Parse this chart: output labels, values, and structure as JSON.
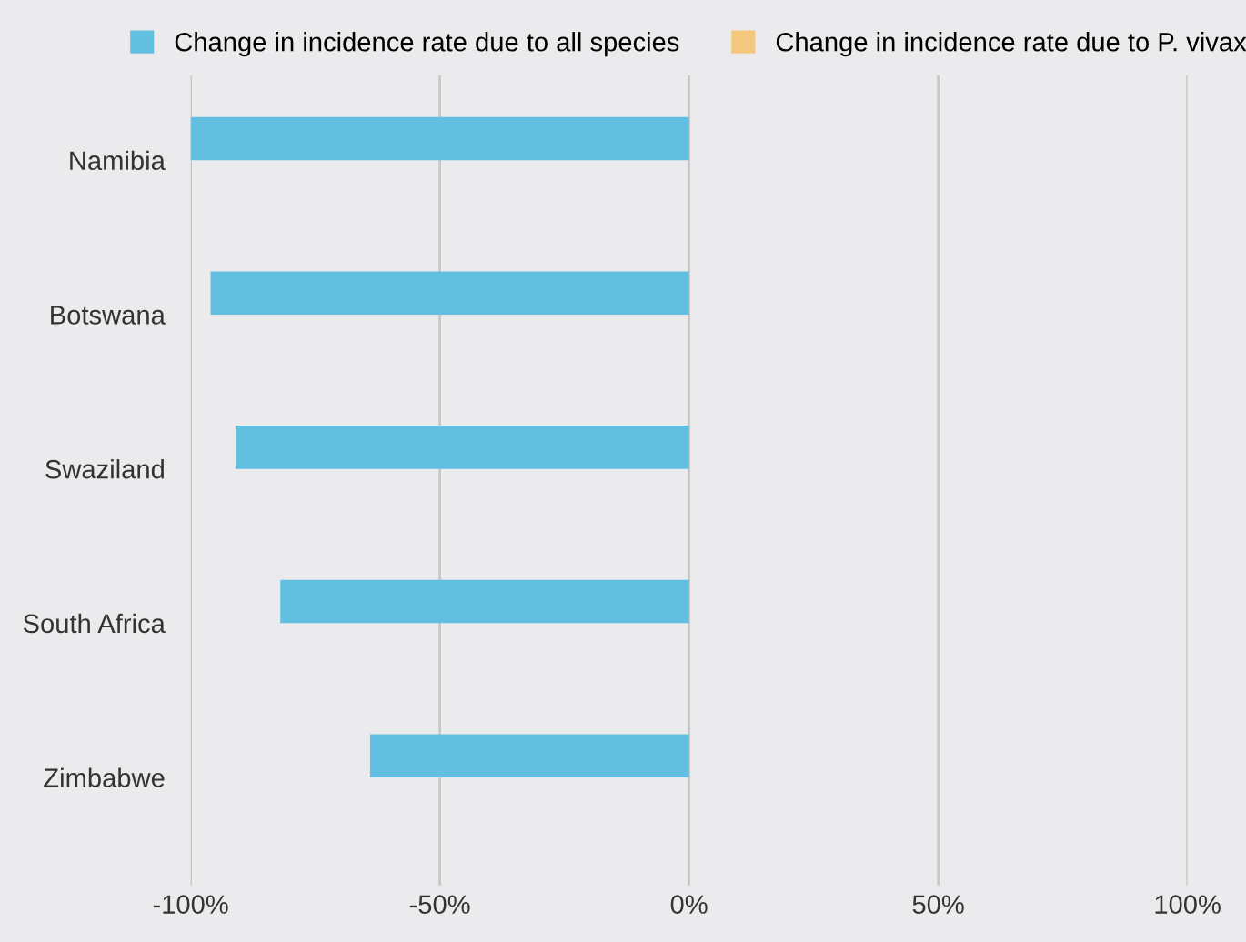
{
  "chart_data": {
    "type": "bar",
    "orientation": "horizontal",
    "categories": [
      "Namibia",
      "Botswana",
      "Swaziland",
      "South Africa",
      "Zimbabwe"
    ],
    "series": [
      {
        "name": "Change in incidence rate due to all species",
        "color": "#62bfe0",
        "values": [
          -100,
          -96,
          -91,
          -82,
          -64
        ]
      },
      {
        "name": "Change in incidence rate due to P. vivax",
        "color": "#f5c77e",
        "values": [
          null,
          null,
          null,
          null,
          null
        ]
      }
    ],
    "xlim": [
      -100,
      100
    ],
    "xticks": [
      {
        "value": -100,
        "label": "-100%"
      },
      {
        "value": -50,
        "label": "-50%"
      },
      {
        "value": 0,
        "label": "0%"
      },
      {
        "value": 50,
        "label": "50%"
      },
      {
        "value": 100,
        "label": "100%"
      }
    ],
    "grid": "x",
    "legend": "top"
  }
}
